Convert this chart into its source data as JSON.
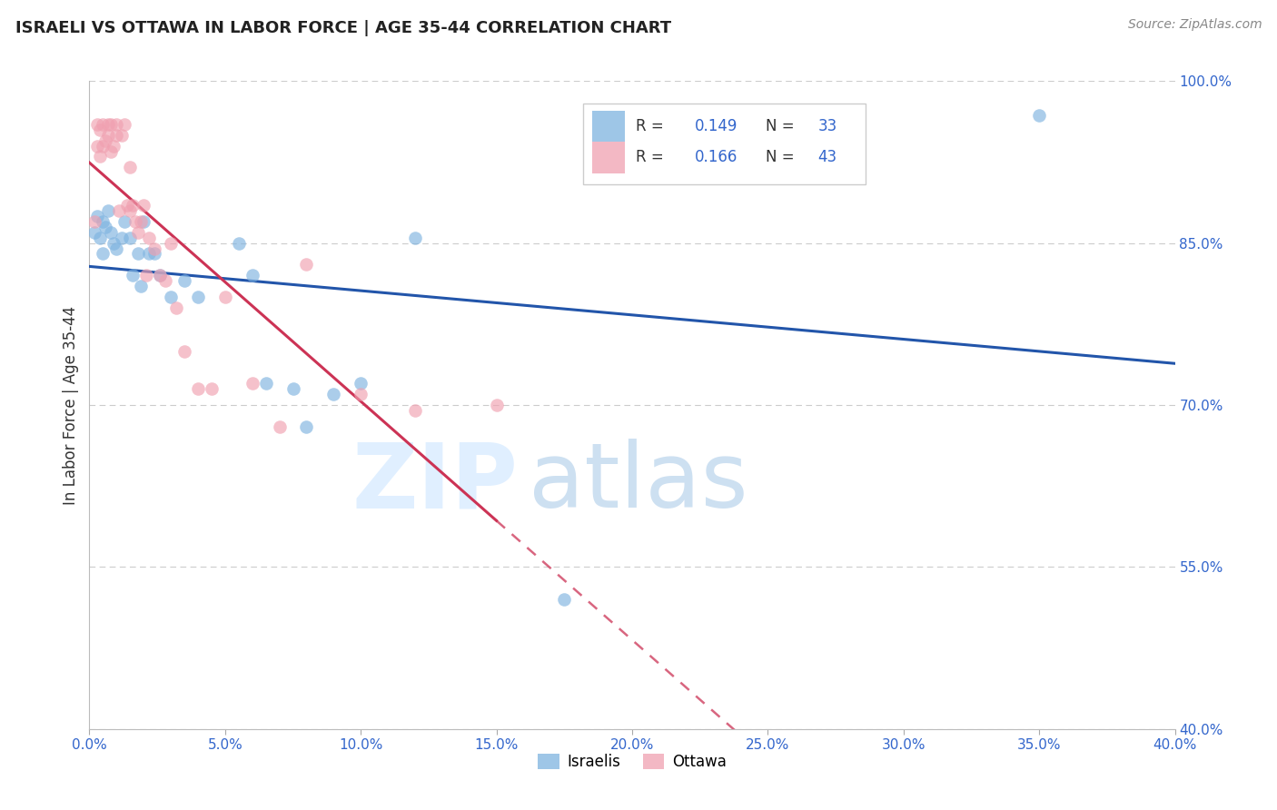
{
  "title": "ISRAELI VS OTTAWA IN LABOR FORCE | AGE 35-44 CORRELATION CHART",
  "source": "Source: ZipAtlas.com",
  "ylabel": "In Labor Force | Age 35-44",
  "xlim": [
    0.0,
    0.4
  ],
  "ylim": [
    0.4,
    1.0
  ],
  "legend_israelis_label": "Israelis",
  "legend_ottawa_label": "Ottawa",
  "R_israelis": 0.149,
  "N_israelis": 33,
  "R_ottawa": 0.166,
  "N_ottawa": 43,
  "color_israelis": "#7eb3e0",
  "color_ottawa": "#f0a0b0",
  "color_trend_israelis": "#2255aa",
  "color_trend_ottawa": "#cc3355",
  "israelis_x": [
    0.002,
    0.003,
    0.004,
    0.005,
    0.005,
    0.006,
    0.007,
    0.008,
    0.009,
    0.01,
    0.012,
    0.013,
    0.015,
    0.016,
    0.018,
    0.019,
    0.02,
    0.022,
    0.024,
    0.026,
    0.03,
    0.035,
    0.04,
    0.055,
    0.06,
    0.065,
    0.075,
    0.08,
    0.09,
    0.1,
    0.12,
    0.175,
    0.35
  ],
  "israelis_y": [
    0.86,
    0.875,
    0.855,
    0.87,
    0.84,
    0.865,
    0.88,
    0.86,
    0.85,
    0.845,
    0.855,
    0.87,
    0.855,
    0.82,
    0.84,
    0.81,
    0.87,
    0.84,
    0.84,
    0.82,
    0.8,
    0.815,
    0.8,
    0.85,
    0.82,
    0.72,
    0.715,
    0.68,
    0.71,
    0.72,
    0.855,
    0.52,
    0.968
  ],
  "ottawa_x": [
    0.002,
    0.003,
    0.003,
    0.004,
    0.004,
    0.005,
    0.005,
    0.006,
    0.007,
    0.007,
    0.008,
    0.008,
    0.009,
    0.01,
    0.01,
    0.011,
    0.012,
    0.013,
    0.014,
    0.015,
    0.015,
    0.016,
    0.017,
    0.018,
    0.019,
    0.02,
    0.021,
    0.022,
    0.024,
    0.026,
    0.028,
    0.03,
    0.032,
    0.035,
    0.04,
    0.045,
    0.05,
    0.06,
    0.07,
    0.08,
    0.1,
    0.12,
    0.15
  ],
  "ottawa_y": [
    0.87,
    0.94,
    0.96,
    0.93,
    0.955,
    0.96,
    0.94,
    0.945,
    0.95,
    0.96,
    0.935,
    0.96,
    0.94,
    0.95,
    0.96,
    0.88,
    0.95,
    0.96,
    0.885,
    0.88,
    0.92,
    0.885,
    0.87,
    0.86,
    0.87,
    0.885,
    0.82,
    0.855,
    0.845,
    0.82,
    0.815,
    0.85,
    0.79,
    0.75,
    0.715,
    0.715,
    0.8,
    0.72,
    0.68,
    0.83,
    0.71,
    0.695,
    0.7
  ],
  "x_tick_vals": [
    0.0,
    0.05,
    0.1,
    0.15,
    0.2,
    0.25,
    0.3,
    0.35,
    0.4
  ],
  "y_tick_vals": [
    0.4,
    0.55,
    0.7,
    0.85,
    1.0
  ]
}
